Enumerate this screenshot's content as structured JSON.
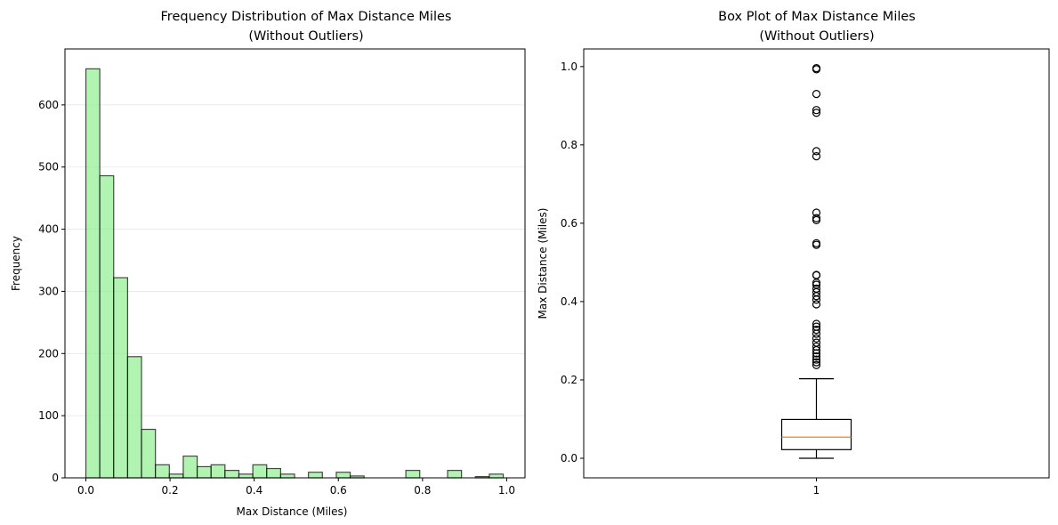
{
  "chart_data": [
    {
      "type": "bar",
      "title": [
        "Frequency Distribution of Max Distance Miles",
        "(Without Outliers)"
      ],
      "xlabel": "Max Distance (Miles)",
      "ylabel": "Frequency",
      "xlim": [
        -0.0497,
        1.0435
      ],
      "ylim": [
        0,
        690
      ],
      "xticks": [
        "0.0",
        "0.2",
        "0.4",
        "0.6",
        "0.8",
        "1.0"
      ],
      "yticks": [
        "0",
        "100",
        "200",
        "300",
        "400",
        "500",
        "600"
      ],
      "grid": "y",
      "bar_color": "#90ee90",
      "edge_color": "#000000",
      "bin_width": 0.03306,
      "bin_starts": [
        0.0,
        0.03306,
        0.06612,
        0.09918,
        0.13224,
        0.1653,
        0.19836,
        0.23142,
        0.26448,
        0.29754,
        0.3306,
        0.36366,
        0.39672,
        0.42978,
        0.46284,
        0.4959,
        0.52896,
        0.56202,
        0.59508,
        0.62814,
        0.6612,
        0.69426,
        0.72732,
        0.76038,
        0.79344,
        0.8265,
        0.85956,
        0.89262,
        0.92568,
        0.95874
      ],
      "values": [
        658,
        486,
        322,
        195,
        78,
        21,
        6,
        35,
        18,
        21,
        12,
        6,
        21,
        15,
        6,
        0,
        9,
        0,
        9,
        3,
        0,
        0,
        0,
        12,
        0,
        0,
        12,
        0,
        2,
        6
      ]
    },
    {
      "type": "box",
      "title": [
        "Box Plot of Max Distance Miles",
        "(Without Outliers)"
      ],
      "xlabel": "",
      "ylabel": "Max Distance (Miles)",
      "ylim": [
        -0.05,
        1.045
      ],
      "xticks": [
        "1"
      ],
      "yticks": [
        "0.0",
        "0.2",
        "0.4",
        "0.6",
        "0.8",
        "1.0"
      ],
      "median_color": "#ff7f0e",
      "box": {
        "whisker_low": 0.0,
        "q1": 0.022,
        "median": 0.054,
        "q3": 0.099,
        "whisker_high": 0.203
      },
      "outliers": [
        0.238,
        0.245,
        0.252,
        0.26,
        0.268,
        0.276,
        0.285,
        0.295,
        0.306,
        0.318,
        0.328,
        0.336,
        0.343,
        0.393,
        0.405,
        0.414,
        0.424,
        0.433,
        0.443,
        0.448,
        0.467,
        0.468,
        0.545,
        0.549,
        0.608,
        0.613,
        0.627,
        0.771,
        0.784,
        0.882,
        0.889,
        0.93,
        0.993,
        0.996
      ]
    }
  ]
}
